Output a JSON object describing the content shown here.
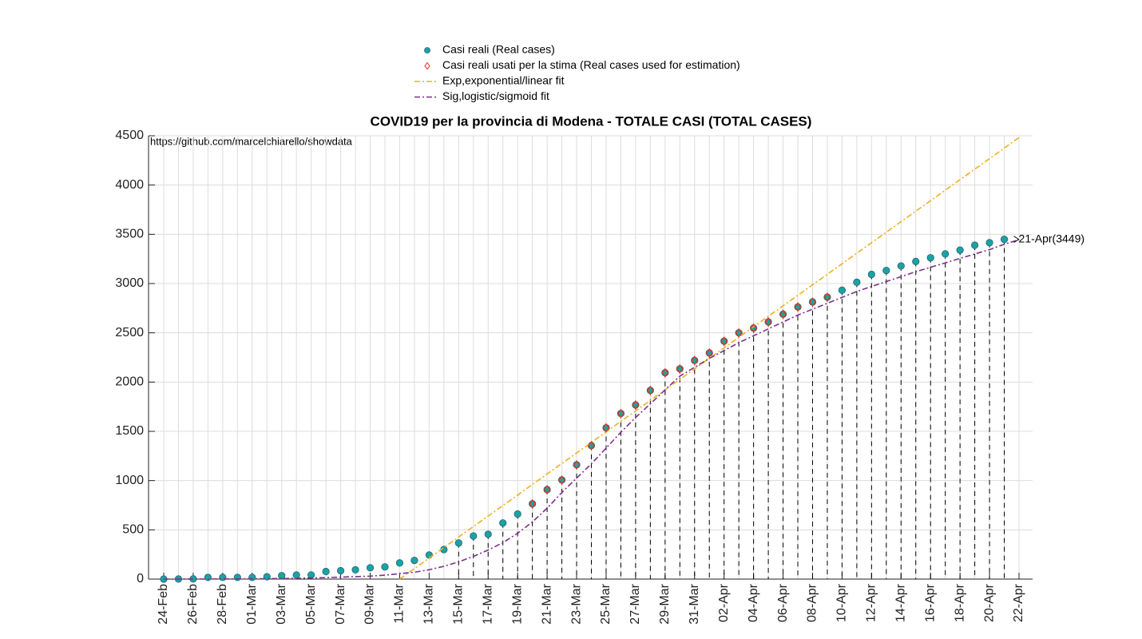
{
  "chart_data": {
    "type": "line",
    "title": "COVID19 per la provincia di Modena - TOTALE CASI (TOTAL CASES)",
    "source": "https://github.com/marcelchiarello/showdata",
    "annotation": "21-Apr(3449)",
    "categories": [
      "24-Feb",
      null,
      "26-Feb",
      null,
      "28-Feb",
      null,
      "01-Mar",
      null,
      "03-Mar",
      null,
      "05-Mar",
      null,
      "07-Mar",
      null,
      "09-Mar",
      null,
      "11-Mar",
      null,
      "13-Mar",
      null,
      "15-Mar",
      null,
      "17-Mar",
      null,
      "19-Mar",
      null,
      "21-Mar",
      null,
      "23-Mar",
      null,
      "25-Mar",
      null,
      "27-Mar",
      null,
      "29-Mar",
      null,
      "31-Mar",
      null,
      "02-Apr",
      null,
      "04-Apr",
      null,
      "06-Apr",
      null,
      "08-Apr",
      null,
      "10-Apr",
      null,
      "12-Apr",
      null,
      "14-Apr",
      null,
      "16-Apr",
      null,
      "18-Apr",
      null,
      "20-Apr",
      null,
      "22-Apr"
    ],
    "ylim": [
      0,
      4500
    ],
    "yticks": [
      0,
      500,
      1000,
      1500,
      2000,
      2500,
      3000,
      3500,
      4000,
      4500
    ],
    "grid": true,
    "series": [
      {
        "name": "Casi reali (Real cases)",
        "color": "#1aa3a3",
        "marker": "circle",
        "values": [
          0,
          1,
          2,
          17,
          17,
          17,
          17,
          24,
          35,
          42,
          42,
          77,
          85,
          94,
          115,
          124,
          164,
          190,
          244,
          300,
          367,
          438,
          455,
          570,
          661,
          764,
          908,
          1006,
          1160,
          1355,
          1536,
          1681,
          1768,
          1916,
          2095,
          2134,
          2220,
          2296,
          2415,
          2500,
          2548,
          2611,
          2689,
          2763,
          2813,
          2862,
          2932,
          3013,
          3093,
          3133,
          3179,
          3224,
          3262,
          3301,
          3340,
          3389,
          3415,
          3449,
          null
        ]
      },
      {
        "name": "Casi reali usati per la stima (Real cases used for estimation)",
        "color": "#e8321e",
        "marker": "diamond",
        "values": [
          null,
          null,
          null,
          null,
          null,
          null,
          null,
          null,
          null,
          null,
          null,
          null,
          null,
          null,
          null,
          null,
          null,
          null,
          null,
          null,
          null,
          null,
          null,
          null,
          null,
          764,
          908,
          1006,
          1160,
          1355,
          1536,
          1681,
          1768,
          1916,
          2095,
          2134,
          2220,
          2296,
          2415,
          2500,
          2548,
          2611,
          2689,
          2763,
          2813,
          2862,
          null,
          null,
          null,
          null,
          null,
          null,
          null,
          null,
          null,
          null,
          null,
          null,
          null
        ]
      },
      {
        "name": "Exp,exponential/linear fit",
        "color": "#edb120",
        "marker": "line",
        "values": [
          null,
          null,
          null,
          null,
          null,
          null,
          null,
          null,
          null,
          null,
          null,
          null,
          null,
          null,
          null,
          null,
          0,
          107,
          213,
          320,
          427,
          534,
          640,
          747,
          854,
          960,
          1067,
          1174,
          1280,
          1387,
          1494,
          1601,
          1707,
          1814,
          1921,
          2027,
          2134,
          2241,
          2347,
          2454,
          2561,
          2668,
          2774,
          2881,
          2988,
          3094,
          3201,
          3308,
          3414,
          3521,
          3628,
          3735,
          3841,
          3948,
          4055,
          4161,
          4268,
          4375,
          4482
        ]
      },
      {
        "name": "Sig,logistic/sigmoid fit",
        "color": "#7e2f8e",
        "marker": "line",
        "values": [
          0,
          0,
          1,
          1,
          2,
          2,
          3,
          4,
          6,
          8,
          11,
          15,
          20,
          25,
          30,
          40,
          55,
          70,
          95,
          130,
          175,
          230,
          295,
          370,
          465,
          580,
          720,
          880,
          1025,
          1170,
          1330,
          1490,
          1640,
          1780,
          1920,
          2060,
          2150,
          2240,
          2320,
          2400,
          2470,
          2540,
          2610,
          2680,
          2740,
          2800,
          2860,
          2920,
          2970,
          3020,
          3070,
          3120,
          3165,
          3210,
          3255,
          3300,
          3345,
          3400,
          3445
        ]
      }
    ]
  }
}
